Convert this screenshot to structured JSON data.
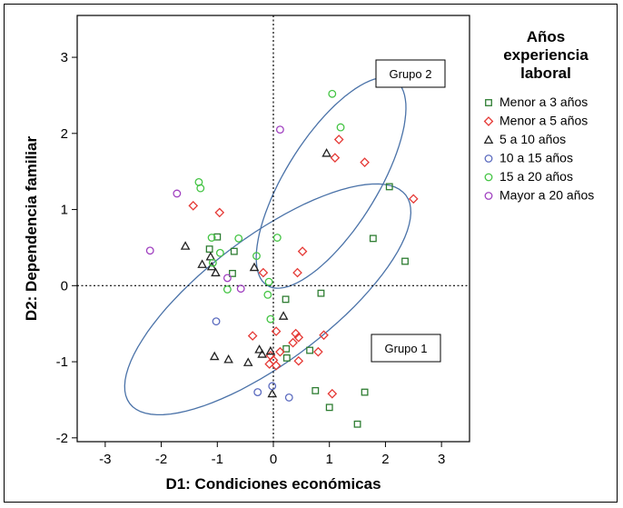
{
  "chart_data": {
    "type": "scatter",
    "xlabel": "D1: Condiciones económicas",
    "ylabel": "D2: Dependencia familiar",
    "xlim": [
      -3.5,
      3.5
    ],
    "ylim": [
      -2.05,
      3.55
    ],
    "xticks": [
      -3,
      -2,
      -1,
      0,
      1,
      2,
      3
    ],
    "yticks": [
      -2,
      -1,
      0,
      1,
      2,
      3
    ],
    "grid": false,
    "reference_lines": {
      "x": 0,
      "y": 0,
      "style": "dotted"
    },
    "legend": {
      "title": [
        "Años",
        "experiencia",
        "laboral"
      ],
      "placement": "right"
    },
    "series": [
      {
        "name": "Menor a 3 años",
        "marker": "square",
        "color": "#2e7d32",
        "points": [
          [
            -1.0,
            0.64
          ],
          [
            -0.7,
            0.45
          ],
          [
            -0.73,
            0.16
          ],
          [
            -1.14,
            0.48
          ],
          [
            0.22,
            -0.18
          ],
          [
            0.85,
            -0.1
          ],
          [
            0.65,
            -0.85
          ],
          [
            0.23,
            -0.83
          ],
          [
            0.24,
            -0.95
          ],
          [
            0.75,
            -1.38
          ],
          [
            1.63,
            -1.4
          ],
          [
            1.0,
            -1.6
          ],
          [
            1.5,
            -1.82
          ],
          [
            2.07,
            1.3
          ],
          [
            1.78,
            0.62
          ],
          [
            2.35,
            0.32
          ]
        ]
      },
      {
        "name": "Menor a 5 años",
        "marker": "diamond",
        "color": "#e53935",
        "points": [
          [
            -1.43,
            1.05
          ],
          [
            -0.96,
            0.96
          ],
          [
            -0.18,
            0.17
          ],
          [
            0.52,
            0.45
          ],
          [
            0.43,
            0.17
          ],
          [
            -0.37,
            -0.66
          ],
          [
            0.05,
            -0.6
          ],
          [
            0.12,
            -0.87
          ],
          [
            0.4,
            -0.63
          ],
          [
            0.45,
            -0.68
          ],
          [
            0.9,
            -0.65
          ],
          [
            -0.05,
            -0.92
          ],
          [
            -0.0,
            -0.98
          ],
          [
            0.35,
            -0.75
          ],
          [
            0.45,
            -0.99
          ],
          [
            -0.07,
            -1.03
          ],
          [
            0.05,
            -1.05
          ],
          [
            0.8,
            -0.87
          ],
          [
            1.05,
            -1.42
          ],
          [
            1.1,
            1.68
          ],
          [
            1.17,
            1.92
          ],
          [
            1.63,
            1.62
          ],
          [
            2.5,
            1.14
          ]
        ]
      },
      {
        "name": "5 a 10 años",
        "marker": "triangle",
        "color": "#222222",
        "points": [
          [
            -1.57,
            0.52
          ],
          [
            -1.27,
            0.28
          ],
          [
            -1.1,
            0.25
          ],
          [
            -1.03,
            0.17
          ],
          [
            -1.12,
            0.38
          ],
          [
            -0.34,
            0.24
          ],
          [
            0.18,
            -0.4
          ],
          [
            -1.05,
            -0.93
          ],
          [
            -0.8,
            -0.97
          ],
          [
            -0.45,
            -1.01
          ],
          [
            -0.25,
            -0.84
          ],
          [
            -0.2,
            -0.9
          ],
          [
            -0.05,
            -0.86
          ],
          [
            -0.02,
            -1.42
          ],
          [
            0.95,
            1.74
          ]
        ]
      },
      {
        "name": "10 a 15 años",
        "marker": "circle",
        "color": "#5b6bbf",
        "points": [
          [
            -1.02,
            -0.47
          ],
          [
            -0.28,
            -1.4
          ],
          [
            -0.02,
            -1.32
          ],
          [
            0.28,
            -1.47
          ]
        ]
      },
      {
        "name": "15 a 20 años",
        "marker": "circle",
        "color": "#43c443",
        "points": [
          [
            -1.33,
            1.36
          ],
          [
            -1.3,
            1.28
          ],
          [
            -1.1,
            0.63
          ],
          [
            -0.95,
            0.43
          ],
          [
            -0.62,
            0.62
          ],
          [
            -0.3,
            0.39
          ],
          [
            0.07,
            0.63
          ],
          [
            -1.08,
            0.3
          ],
          [
            -0.82,
            -0.05
          ],
          [
            -0.08,
            0.05
          ],
          [
            -0.1,
            -0.12
          ],
          [
            -0.05,
            -0.44
          ],
          [
            1.05,
            2.52
          ],
          [
            1.2,
            2.08
          ]
        ]
      },
      {
        "name": "Mayor a 20 años",
        "marker": "circle",
        "color": "#a040c0",
        "points": [
          [
            -1.72,
            1.21
          ],
          [
            -2.2,
            0.46
          ],
          [
            -0.82,
            0.1
          ],
          [
            -0.58,
            -0.04
          ],
          [
            0.12,
            2.05
          ]
        ]
      }
    ],
    "annotations": [
      {
        "text": "Grupo 2",
        "shape": "ellipse",
        "color": "#4a72a8"
      },
      {
        "text": "Grupo 1",
        "shape": "ellipse",
        "color": "#4a72a8"
      }
    ]
  }
}
